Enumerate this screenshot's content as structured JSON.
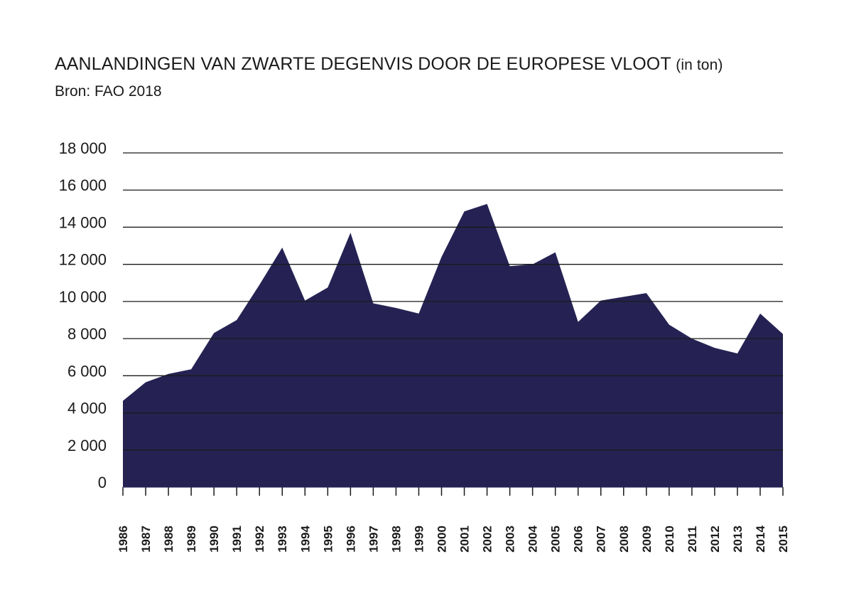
{
  "chart_data": {
    "type": "area",
    "title": "AANLANDINGEN VAN ZWARTE DEGENVIS DOOR DE EUROPESE VLOOT",
    "title_unit": "(in ton)",
    "subtitle": "Bron: FAO 2018",
    "x": [
      1986,
      1987,
      1988,
      1989,
      1990,
      1991,
      1992,
      1993,
      1994,
      1995,
      1996,
      1997,
      1998,
      1999,
      2000,
      2001,
      2002,
      2003,
      2004,
      2005,
      2006,
      2007,
      2008,
      2009,
      2010,
      2011,
      2012,
      2013,
      2014,
      2015
    ],
    "x_tick_labels": [
      "1986",
      "1987",
      "1988",
      "1989",
      "1990",
      "1991",
      "1992",
      "1993",
      "1994",
      "1995",
      "1996",
      "1997",
      "1998",
      "1999",
      "2000",
      "2001",
      "2002",
      "2003",
      "2004",
      "2005",
      "2006",
      "2007",
      "2008",
      "2009",
      "2010",
      "2011",
      "2012",
      "2013",
      "2014",
      "2015"
    ],
    "series": [
      {
        "values": [
          4650,
          5650,
          6100,
          6350,
          8300,
          9000,
          10900,
          12900,
          10050,
          10750,
          13700,
          9900,
          9650,
          9350,
          12400,
          14850,
          15250,
          11900,
          12000,
          12650,
          8900,
          10050,
          10250,
          10450,
          8750,
          8000,
          7500,
          7200,
          9350,
          8250
        ]
      }
    ],
    "y_ticks": [
      0,
      2000,
      4000,
      6000,
      8000,
      10000,
      12000,
      14000,
      16000,
      18000
    ],
    "y_tick_labels": [
      "0",
      "2 000",
      "4 000",
      "6 000",
      "8 000",
      "10 000",
      "12 000",
      "14 000",
      "16 000",
      "18 000"
    ],
    "ylim": [
      0,
      18000
    ],
    "grid": true,
    "legend": "none",
    "colors": {
      "area": "#252253",
      "grid": "#1a1a1a",
      "text": "#1a1a1a"
    }
  }
}
